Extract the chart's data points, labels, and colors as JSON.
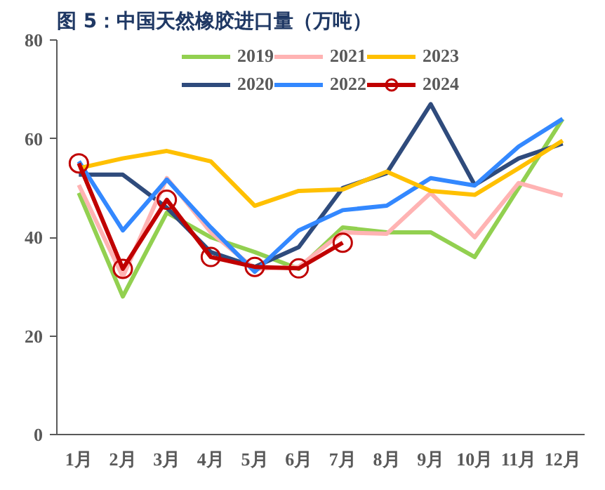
{
  "chart_data": {
    "type": "line",
    "title": "图 5：中国天然橡胶进口量（万吨）",
    "categories": [
      "1月",
      "2月",
      "3月",
      "4月",
      "5月",
      "6月",
      "7月",
      "8月",
      "9月",
      "10月",
      "11月",
      "12月"
    ],
    "ylim": [
      0,
      80
    ],
    "yticks": [
      0,
      20,
      40,
      60,
      80
    ],
    "grid": false,
    "legend": "top",
    "series": [
      {
        "name": "2019",
        "color": "#92d050",
        "values": [
          49,
          28,
          45,
          40,
          37,
          33.6,
          42,
          41,
          41,
          36,
          50,
          64
        ]
      },
      {
        "name": "2020",
        "color": "#2f4b7c",
        "values": [
          52.7,
          52.7,
          46,
          37,
          34,
          38,
          50,
          53,
          67,
          50.6,
          56,
          59
        ]
      },
      {
        "name": "2021",
        "color": "#ffb3b3",
        "values": [
          50.6,
          32,
          52,
          41,
          33.6,
          34,
          41,
          40.7,
          49,
          40,
          51,
          48.5
        ]
      },
      {
        "name": "2022",
        "color": "#3388ff",
        "values": [
          55.4,
          41.4,
          51.7,
          42,
          33,
          41.4,
          45.5,
          46.4,
          52,
          50.5,
          58.4,
          64
        ]
      },
      {
        "name": "2023",
        "color": "#ffc000",
        "values": [
          54,
          56,
          57.5,
          55.4,
          46.4,
          49.4,
          49.7,
          53.3,
          49.4,
          48.6,
          54,
          59.6
        ]
      },
      {
        "name": "2024",
        "color": "#c00000",
        "marker": "circle",
        "values": [
          55,
          33.6,
          47.6,
          36,
          34,
          33.7,
          38.9,
          null,
          null,
          null,
          null,
          null
        ]
      }
    ]
  }
}
